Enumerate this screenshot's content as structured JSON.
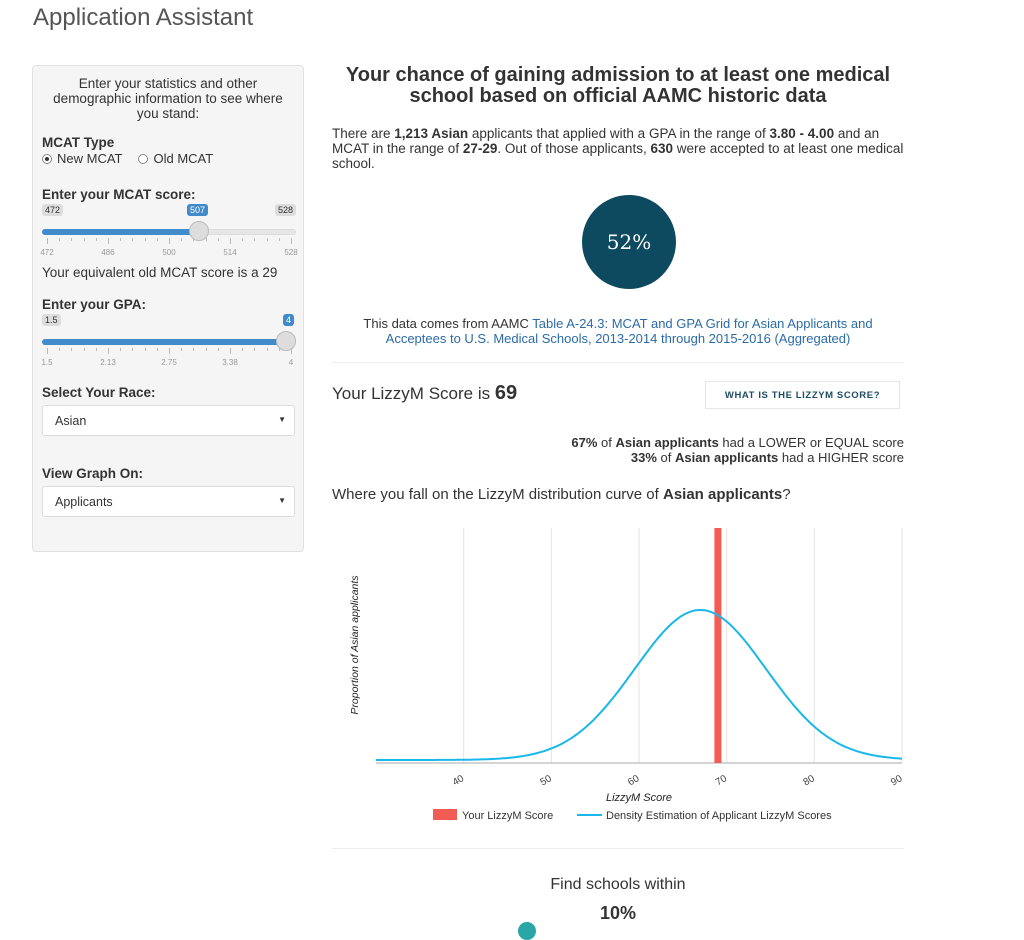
{
  "app_title": "Application Assistant",
  "sidebar": {
    "intro": "Enter your statistics and other demographic information to see where you stand:",
    "mcat_type_label": "MCAT Type",
    "mcat_types": [
      "New MCAT",
      "Old MCAT"
    ],
    "mcat_score_label": "Enter your MCAT score:",
    "mcat_slider": {
      "min": 472,
      "max": 528,
      "value": 507,
      "ticks": [
        "472",
        "486",
        "500",
        "514",
        "528"
      ]
    },
    "equiv_text": "Your equivalent old MCAT score is a 29",
    "gpa_label": "Enter your GPA:",
    "gpa_slider": {
      "min": 1.5,
      "max": 4,
      "value": 4,
      "min_label": "1.5",
      "max_label": "4",
      "value_label": "4",
      "ticks": [
        "1.5",
        "2.13",
        "2.75",
        "3.38",
        "4"
      ]
    },
    "race_label": "Select Your Race:",
    "race_value": "Asian",
    "graph_label": "View Graph On:",
    "graph_value": "Applicants"
  },
  "main": {
    "title": "Your chance of gaining admission to at least one medical school based on official AAMC historic data",
    "intro": {
      "p1": "There are ",
      "count": "1,213 Asian",
      "p2": " applicants that applied with a GPA in the range of ",
      "gpa_range": "3.80 - 4.00",
      "p3": " and an MCAT in the range of ",
      "mcat_range": "27-29",
      "p4": ". Out of those applicants, ",
      "accepted": "630",
      "p5": " were accepted to at least one medical school."
    },
    "chance": "52%",
    "source_prefix": "This data comes from AAMC ",
    "source_link": "Table A-24.3: MCAT and GPA Grid for Asian Applicants and Acceptees to U.S. Medical Schools, 2013-2014 through 2015-2016 (Aggregated)",
    "score_prefix": "Your LizzyM Score is ",
    "score_value": "69",
    "what_button": "WHAT IS THE LIZZYM SCORE?",
    "stat1": {
      "pct": "67%",
      "mid1": " of ",
      "group": "Asian applicants",
      "rest": " had a LOWER or EQUAL score"
    },
    "stat2": {
      "pct": "33%",
      "mid1": " of ",
      "group": "Asian applicants",
      "rest": " had a HIGHER score"
    },
    "fall_prefix": "Where you fall on the LizzyM distribution curve of ",
    "fall_group": "Asian applicants",
    "fall_suffix": "?",
    "find_schools": "Find schools within",
    "find_pct": "10%"
  },
  "chart_data": {
    "type": "line",
    "ylabel": "Proportion of Asian applicants",
    "xlabel": "LizzyM Score",
    "xlim": [
      30,
      90
    ],
    "ticks": [
      40,
      50,
      60,
      70,
      80,
      90
    ],
    "your_score": 69,
    "density_mean": 67,
    "density_sd": 7.5,
    "legend": [
      "Your LizzyM Score",
      "Density Estimation of Applicant LizzyM Scores"
    ],
    "colors": {
      "score": "#f25c54",
      "density": "#1ab7ea"
    }
  }
}
